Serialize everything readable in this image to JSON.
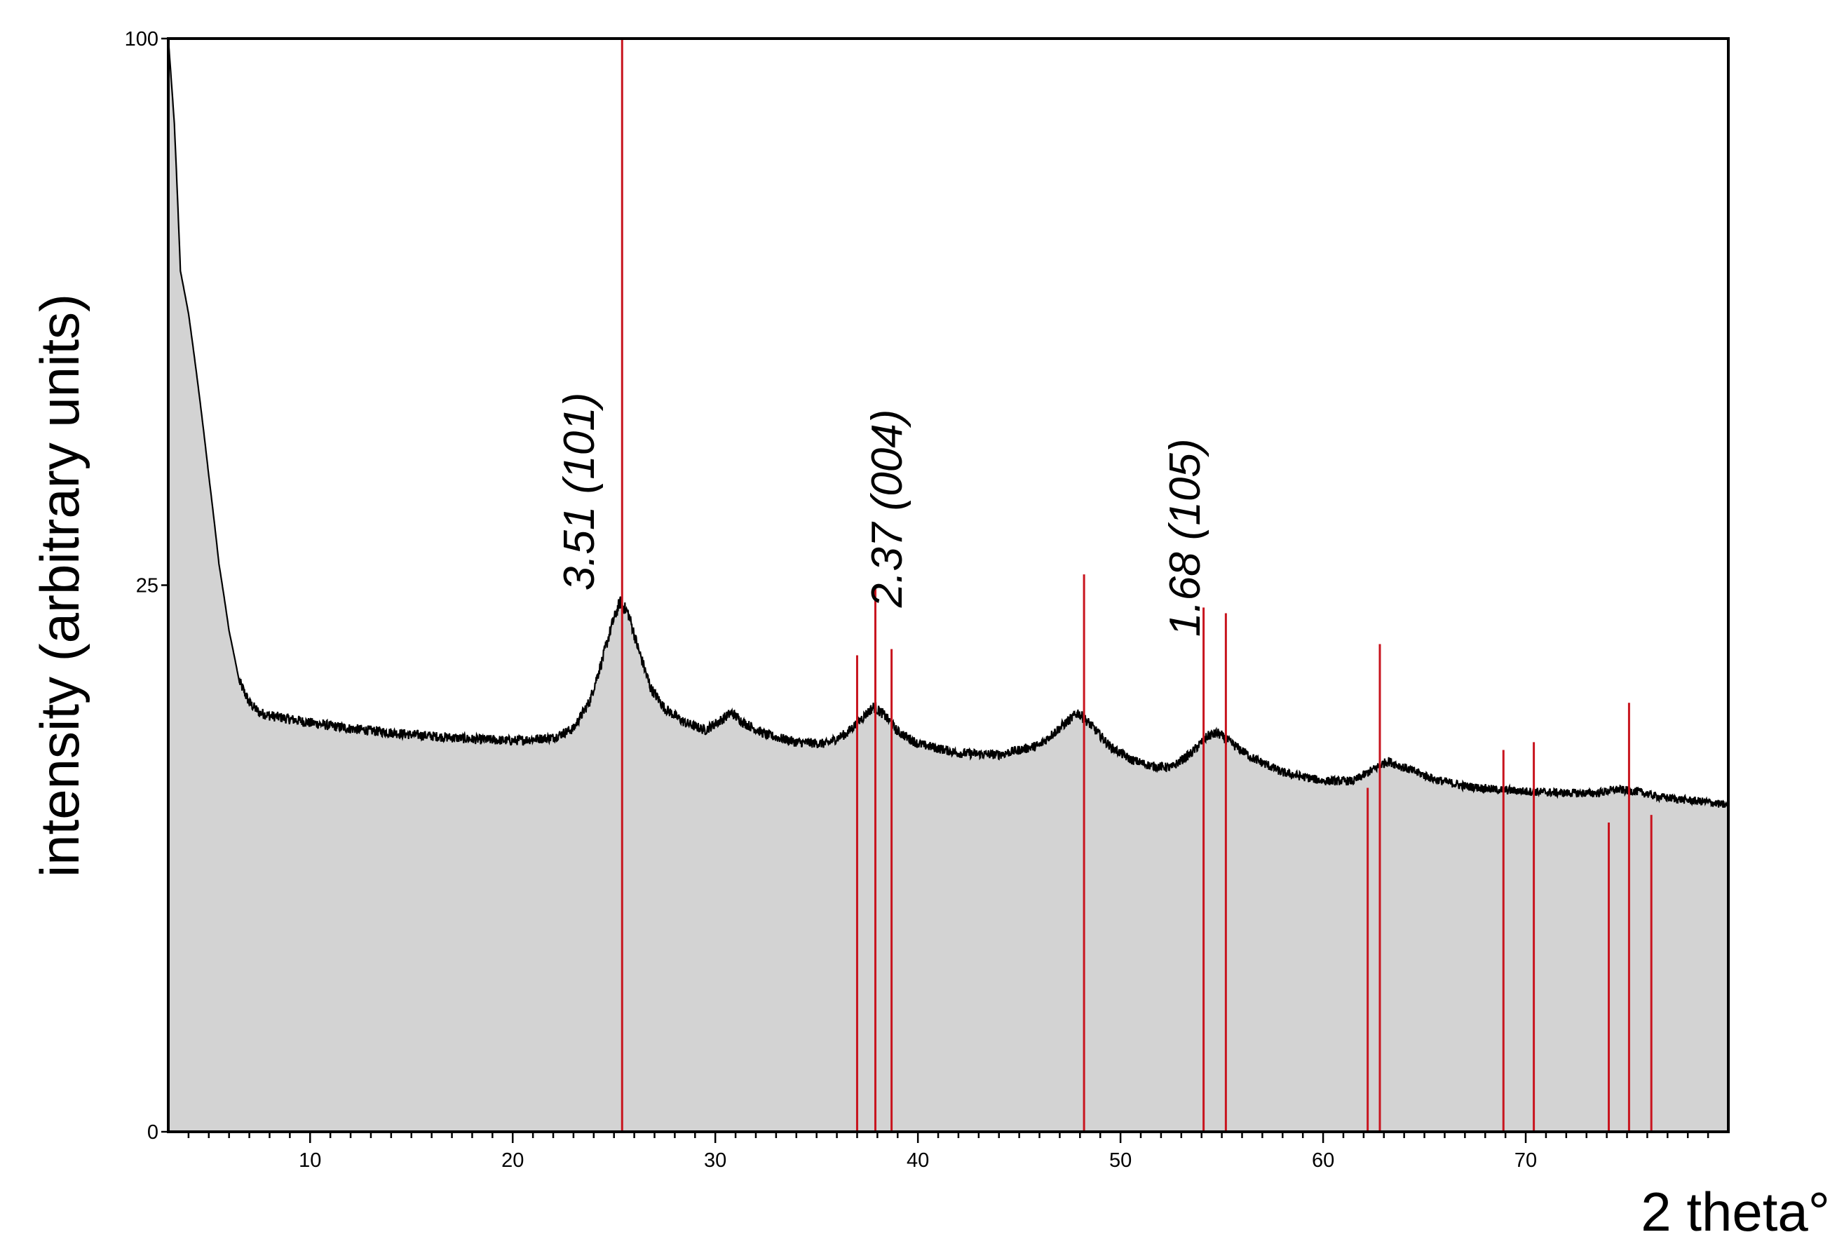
{
  "chart_data": {
    "type": "area",
    "xlabel": "2 theta°",
    "ylabel": "intensity (arbitrary units)",
    "xlim": [
      3,
      80
    ],
    "ylim": [
      0,
      100
    ],
    "y_scale": "sqrt",
    "grid": false,
    "x_ticks": [
      10,
      20,
      30,
      40,
      50,
      60,
      70
    ],
    "y_ticks": [
      0,
      25,
      100
    ],
    "colors": {
      "fill": "#d3d3d3",
      "line": "#000000",
      "reference": "#c8141e"
    },
    "series": [
      {
        "values": [
          [
            3.0,
            100
          ],
          [
            3.3,
            85
          ],
          [
            3.6,
            62
          ],
          [
            4.0,
            56
          ],
          [
            4.5,
            46
          ],
          [
            5.0,
            36
          ],
          [
            5.5,
            27
          ],
          [
            6.0,
            21
          ],
          [
            6.5,
            17
          ],
          [
            7.0,
            15.4
          ],
          [
            7.5,
            14.7
          ],
          [
            8.0,
            14.5
          ],
          [
            10.0,
            14.0
          ],
          [
            12.0,
            13.6
          ],
          [
            15.0,
            13.2
          ],
          [
            18.0,
            12.9
          ],
          [
            20.0,
            12.8
          ],
          [
            22.0,
            13.0
          ],
          [
            23.0,
            13.6
          ],
          [
            23.8,
            15.5
          ],
          [
            24.4,
            18.5
          ],
          [
            24.9,
            21.5
          ],
          [
            25.3,
            23.5
          ],
          [
            25.7,
            22.5
          ],
          [
            26.2,
            19.5
          ],
          [
            26.8,
            16.5
          ],
          [
            27.5,
            15.0
          ],
          [
            28.5,
            14.0
          ],
          [
            29.5,
            13.5
          ],
          [
            30.3,
            14.2
          ],
          [
            30.8,
            14.7
          ],
          [
            31.4,
            14.0
          ],
          [
            32.5,
            13.2
          ],
          [
            34.0,
            12.7
          ],
          [
            35.5,
            12.6
          ],
          [
            36.5,
            13.3
          ],
          [
            37.3,
            14.4
          ],
          [
            37.8,
            15.1
          ],
          [
            38.3,
            14.6
          ],
          [
            39.0,
            13.4
          ],
          [
            40.0,
            12.6
          ],
          [
            42.0,
            12.0
          ],
          [
            44.0,
            11.9
          ],
          [
            46.0,
            12.5
          ],
          [
            47.3,
            14.0
          ],
          [
            47.9,
            14.7
          ],
          [
            48.5,
            13.9
          ],
          [
            49.5,
            12.4
          ],
          [
            50.5,
            11.6
          ],
          [
            51.5,
            11.2
          ],
          [
            52.5,
            11.1
          ],
          [
            53.5,
            12.0
          ],
          [
            54.3,
            13.1
          ],
          [
            54.8,
            13.3
          ],
          [
            55.5,
            12.6
          ],
          [
            56.5,
            11.7
          ],
          [
            58.0,
            10.8
          ],
          [
            60.0,
            10.3
          ],
          [
            61.5,
            10.3
          ],
          [
            62.5,
            11.0
          ],
          [
            63.2,
            11.5
          ],
          [
            64.0,
            11.1
          ],
          [
            65.5,
            10.4
          ],
          [
            67.0,
            10.0
          ],
          [
            68.5,
            9.8
          ],
          [
            70.0,
            9.7
          ],
          [
            72.0,
            9.6
          ],
          [
            73.5,
            9.6
          ],
          [
            74.5,
            9.8
          ],
          [
            75.5,
            9.7
          ],
          [
            76.5,
            9.4
          ],
          [
            78.0,
            9.2
          ],
          [
            79.0,
            9.1
          ],
          [
            80.0,
            8.9
          ]
        ]
      }
    ],
    "reference_lines": [
      {
        "x": 25.4,
        "height": 100
      },
      {
        "x": 37.0,
        "height": 19.0
      },
      {
        "x": 37.9,
        "height": 24.8
      },
      {
        "x": 38.7,
        "height": 19.5
      },
      {
        "x": 48.2,
        "height": 26.0
      },
      {
        "x": 54.1,
        "height": 23.0
      },
      {
        "x": 55.2,
        "height": 22.5
      },
      {
        "x": 62.2,
        "height": 9.9
      },
      {
        "x": 62.8,
        "height": 19.9
      },
      {
        "x": 68.9,
        "height": 12.2
      },
      {
        "x": 70.4,
        "height": 12.7
      },
      {
        "x": 74.1,
        "height": 8.0
      },
      {
        "x": 75.1,
        "height": 15.4
      },
      {
        "x": 76.2,
        "height": 8.4
      }
    ],
    "annotations": [
      {
        "text": "3.51 (101)",
        "x": 24.0,
        "y": 24.5
      },
      {
        "text": "2.37 (004)",
        "x": 39.2,
        "y": 23.0
      },
      {
        "text": "1.68 (105)",
        "x": 53.9,
        "y": 20.5
      }
    ]
  }
}
